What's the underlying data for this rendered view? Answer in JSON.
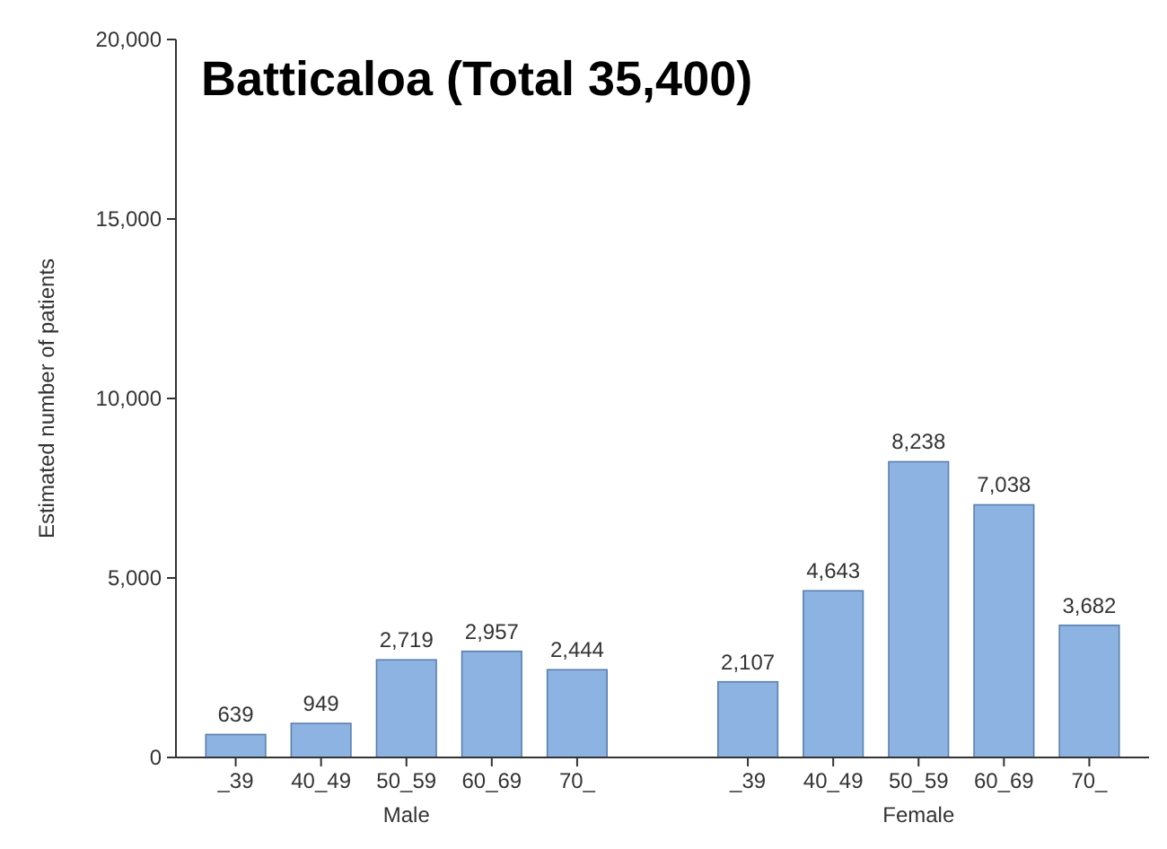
{
  "chart_data": {
    "type": "bar",
    "title": "Batticaloa (Total 35,400)",
    "ylabel": "Estimated number of patients",
    "categories": [
      "_39",
      "40_49",
      "50_59",
      "60_69",
      "70_",
      null,
      "_39",
      "40_49",
      "50_59",
      "60_69",
      "70_"
    ],
    "values": [
      639,
      949,
      2719,
      2957,
      2444,
      null,
      2107,
      4643,
      8238,
      7038,
      3682
    ],
    "value_labels": [
      "639",
      "949",
      "2,719",
      "2,957",
      "2,444",
      null,
      "2,107",
      "4,643",
      "8,238",
      "7,038",
      "3,682"
    ],
    "color": "#8db3e2",
    "ylim": [
      0,
      20000
    ],
    "yticks": [
      0,
      {
        "value": 5000,
        "label": "5,000"
      },
      {
        "value": 10000,
        "label": "10,000"
      },
      {
        "value": 15000,
        "label": "15,000"
      },
      {
        "value": 20000,
        "label": "20,000"
      }
    ],
    "annotations": [
      "Male",
      "Female"
    ],
    "grid": false
  }
}
